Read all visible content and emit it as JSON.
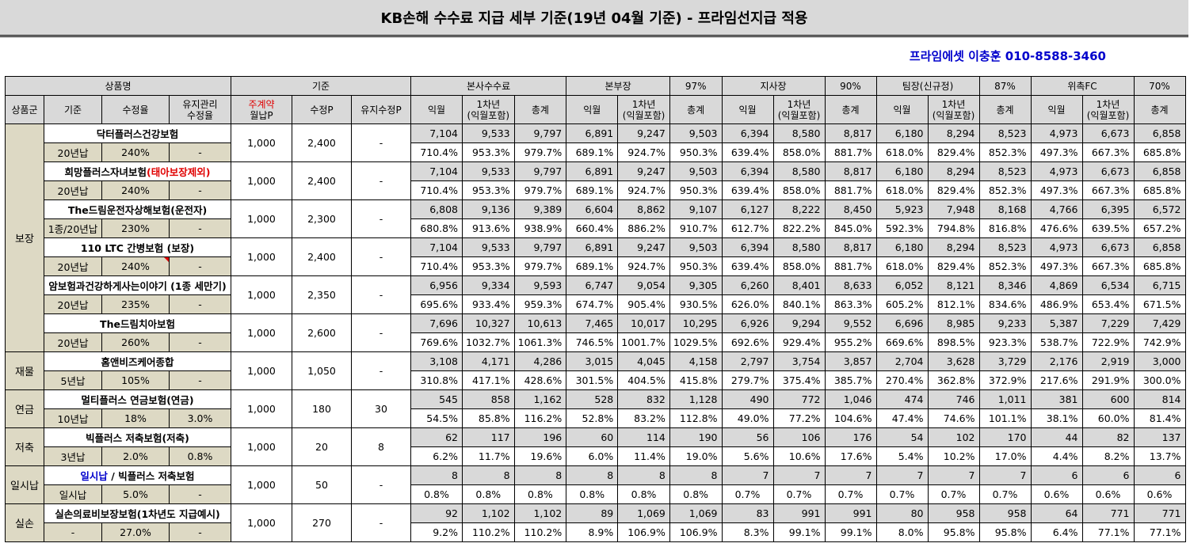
{
  "title": "KB손해 수수료 지급 세부 기준(19년 04월 기준) - 프라임선지급 적용",
  "contact": "프라임에셋 이충훈 010-8588-3460",
  "header": {
    "product_name": "상품명",
    "base": "기준",
    "hq_fee": "본사수수료",
    "bonbujang": "본부장",
    "bonbujang_pct": "97%",
    "jisajang": "지사장",
    "jisajang_pct": "90%",
    "teamjang": "팀장(신규정)",
    "teamjang_pct": "87%",
    "fc": "위촉FC",
    "fc_pct": "70%",
    "group": "상품군",
    "gijun": "기준",
    "rate": "수정율",
    "maint_rate": "유지관리\n수정율",
    "main_contract_prefix": "주계약",
    "main_contract_suffix": "월납P",
    "adj_p": "수정P",
    "maint_adj_p": "유지수정P",
    "month": "익월",
    "first_year": "1차년\n(익월포함)",
    "total": "총계"
  },
  "groups": [
    {
      "name": "보장",
      "products": [
        {
          "name": "닥터플러스건강보험",
          "name_red": "",
          "name_blue": "",
          "period": "20년납",
          "rate": "240%",
          "maint_rate": "-",
          "monthly_p": "1,000",
          "adj_p": "2,400",
          "maint_adj_p": "-",
          "nums": [
            "7,104",
            "9,533",
            "9,797",
            "6,891",
            "9,247",
            "9,503",
            "6,394",
            "8,580",
            "8,817",
            "6,180",
            "8,294",
            "8,523",
            "4,973",
            "6,673",
            "6,858"
          ],
          "pcts": [
            "710.4%",
            "953.3%",
            "979.7%",
            "689.1%",
            "924.7%",
            "950.3%",
            "639.4%",
            "858.0%",
            "881.7%",
            "618.0%",
            "829.4%",
            "852.3%",
            "497.3%",
            "667.3%",
            "685.8%"
          ]
        },
        {
          "name": "희망플러스자녀보험",
          "name_red": "(태아보장제외)",
          "name_blue": "",
          "period": "20년납",
          "rate": "240%",
          "maint_rate": "-",
          "monthly_p": "1,000",
          "adj_p": "2,400",
          "maint_adj_p": "-",
          "nums": [
            "7,104",
            "9,533",
            "9,797",
            "6,891",
            "9,247",
            "9,503",
            "6,394",
            "8,580",
            "8,817",
            "6,180",
            "8,294",
            "8,523",
            "4,973",
            "6,673",
            "6,858"
          ],
          "pcts": [
            "710.4%",
            "953.3%",
            "979.7%",
            "689.1%",
            "924.7%",
            "950.3%",
            "639.4%",
            "858.0%",
            "881.7%",
            "618.0%",
            "829.4%",
            "852.3%",
            "497.3%",
            "667.3%",
            "685.8%"
          ]
        },
        {
          "name": "The드림운전자상해보험(운전자)",
          "name_red": "",
          "name_blue": "",
          "period": "1종/20년납",
          "rate": "230%",
          "maint_rate": "-",
          "monthly_p": "1,000",
          "adj_p": "2,300",
          "maint_adj_p": "-",
          "nums": [
            "6,808",
            "9,136",
            "9,389",
            "6,604",
            "8,862",
            "9,107",
            "6,127",
            "8,222",
            "8,450",
            "5,923",
            "7,948",
            "8,168",
            "4,766",
            "6,395",
            "6,572"
          ],
          "pcts": [
            "680.8%",
            "913.6%",
            "938.9%",
            "660.4%",
            "886.2%",
            "910.7%",
            "612.7%",
            "822.2%",
            "845.0%",
            "592.3%",
            "794.8%",
            "816.8%",
            "476.6%",
            "639.5%",
            "657.2%"
          ]
        },
        {
          "name": "110 LTC 간병보험 (보장)",
          "name_red": "",
          "name_blue": "",
          "period": "20년납",
          "rate": "240%",
          "maint_rate": "-",
          "monthly_p": "1,000",
          "adj_p": "2,400",
          "maint_adj_p": "-",
          "nums": [
            "7,104",
            "9,533",
            "9,797",
            "6,891",
            "9,247",
            "9,503",
            "6,394",
            "8,580",
            "8,817",
            "6,180",
            "8,294",
            "8,523",
            "4,973",
            "6,673",
            "6,858"
          ],
          "pcts": [
            "710.4%",
            "953.3%",
            "979.7%",
            "689.1%",
            "924.7%",
            "950.3%",
            "639.4%",
            "858.0%",
            "881.7%",
            "618.0%",
            "829.4%",
            "852.3%",
            "497.3%",
            "667.3%",
            "685.8%"
          ]
        },
        {
          "name": "암보험과건강하게사는이야기 (1종 세만기)",
          "name_red": "",
          "name_blue": "",
          "period": "20년납",
          "rate": "235%",
          "maint_rate": "-",
          "monthly_p": "1,000",
          "adj_p": "2,350",
          "maint_adj_p": "-",
          "nums": [
            "6,956",
            "9,334",
            "9,593",
            "6,747",
            "9,054",
            "9,305",
            "6,260",
            "8,401",
            "8,633",
            "6,052",
            "8,121",
            "8,346",
            "4,869",
            "6,534",
            "6,715"
          ],
          "pcts": [
            "695.6%",
            "933.4%",
            "959.3%",
            "674.7%",
            "905.4%",
            "930.5%",
            "626.0%",
            "840.1%",
            "863.3%",
            "605.2%",
            "812.1%",
            "834.6%",
            "486.9%",
            "653.4%",
            "671.5%"
          ]
        },
        {
          "name": "The드림치아보험",
          "name_red": "",
          "name_blue": "",
          "period": "20년납",
          "rate": "260%",
          "maint_rate": "-",
          "monthly_p": "1,000",
          "adj_p": "2,600",
          "maint_adj_p": "-",
          "nums": [
            "7,696",
            "10,327",
            "10,613",
            "7,465",
            "10,017",
            "10,295",
            "6,926",
            "9,294",
            "9,552",
            "6,696",
            "8,985",
            "9,233",
            "5,387",
            "7,229",
            "7,429"
          ],
          "pcts": [
            "769.6%",
            "1032.7%",
            "1061.3%",
            "746.5%",
            "1001.7%",
            "1029.5%",
            "692.6%",
            "929.4%",
            "955.2%",
            "669.6%",
            "898.5%",
            "923.3%",
            "538.7%",
            "722.9%",
            "742.9%"
          ]
        }
      ]
    },
    {
      "name": "재물",
      "products": [
        {
          "name": "홈앤비즈케어종합",
          "name_red": "",
          "name_blue": "",
          "period": "5년납",
          "rate": "105%",
          "maint_rate": "-",
          "monthly_p": "1,000",
          "adj_p": "1,050",
          "maint_adj_p": "-",
          "nums": [
            "3,108",
            "4,171",
            "4,286",
            "3,015",
            "4,045",
            "4,158",
            "2,797",
            "3,754",
            "3,857",
            "2,704",
            "3,628",
            "3,729",
            "2,176",
            "2,919",
            "3,000"
          ],
          "pcts": [
            "310.8%",
            "417.1%",
            "428.6%",
            "301.5%",
            "404.5%",
            "415.8%",
            "279.7%",
            "375.4%",
            "385.7%",
            "270.4%",
            "362.8%",
            "372.9%",
            "217.6%",
            "291.9%",
            "300.0%"
          ]
        }
      ]
    },
    {
      "name": "연금",
      "products": [
        {
          "name": "멀티플러스 연금보험(연금)",
          "name_red": "",
          "name_blue": "",
          "period": "10년납",
          "rate": "18%",
          "maint_rate": "3.0%",
          "monthly_p": "1,000",
          "adj_p": "180",
          "maint_adj_p": "30",
          "nums": [
            "545",
            "858",
            "1,162",
            "528",
            "832",
            "1,128",
            "490",
            "772",
            "1,046",
            "474",
            "746",
            "1,011",
            "381",
            "600",
            "814"
          ],
          "pcts": [
            "54.5%",
            "85.8%",
            "116.2%",
            "52.8%",
            "83.2%",
            "112.8%",
            "49.0%",
            "77.2%",
            "104.6%",
            "47.4%",
            "74.6%",
            "101.1%",
            "38.1%",
            "60.0%",
            "81.4%"
          ]
        }
      ]
    },
    {
      "name": "저축",
      "products": [
        {
          "name": "빅플러스 저축보험(저축)",
          "name_red": "",
          "name_blue": "",
          "period": "3년납",
          "rate": "2.0%",
          "maint_rate": "0.8%",
          "monthly_p": "1,000",
          "adj_p": "20",
          "maint_adj_p": "8",
          "nums": [
            "62",
            "117",
            "196",
            "60",
            "114",
            "190",
            "56",
            "106",
            "176",
            "54",
            "102",
            "170",
            "44",
            "82",
            "137"
          ],
          "pcts": [
            "6.2%",
            "11.7%",
            "19.6%",
            "6.0%",
            "11.4%",
            "19.0%",
            "5.6%",
            "10.6%",
            "17.6%",
            "5.4%",
            "10.2%",
            "17.0%",
            "4.4%",
            "8.2%",
            "13.7%"
          ]
        }
      ]
    },
    {
      "name": "일시납",
      "products": [
        {
          "name": " / 빅플러스 저축보험",
          "name_red": "",
          "name_blue": "일시납",
          "period": "일시납",
          "rate": "5.0%",
          "maint_rate": "-",
          "monthly_p": "1,000",
          "adj_p": "50",
          "maint_adj_p": "-",
          "nums": [
            "8",
            "8",
            "8",
            "8",
            "8",
            "8",
            "7",
            "7",
            "7",
            "7",
            "7",
            "7",
            "6",
            "6",
            "6"
          ],
          "pcts": [
            "0.8%",
            "0.8%",
            "0.8%",
            "0.8%",
            "0.8%",
            "0.8%",
            "0.7%",
            "0.7%",
            "0.7%",
            "0.7%",
            "0.7%",
            "0.7%",
            "0.6%",
            "0.6%",
            "0.6%"
          ]
        }
      ]
    },
    {
      "name": "실손",
      "products": [
        {
          "name": "실손의료비보장보험(1차년도 지급예시)",
          "name_red": "",
          "name_blue": "",
          "period": "-",
          "rate": "27.0%",
          "maint_rate": "-",
          "monthly_p": "1,000",
          "adj_p": "270",
          "maint_adj_p": "-",
          "nums": [
            "92",
            "1,102",
            "1,102",
            "89",
            "1,069",
            "1,069",
            "83",
            "991",
            "991",
            "80",
            "958",
            "958",
            "64",
            "771",
            "771"
          ],
          "pcts": [
            "9.2%",
            "110.2%",
            "110.2%",
            "8.9%",
            "106.9%",
            "106.9%",
            "8.3%",
            "99.1%",
            "99.1%",
            "8.0%",
            "95.8%",
            "95.8%",
            "6.4%",
            "77.1%",
            "77.1%"
          ]
        }
      ]
    }
  ]
}
